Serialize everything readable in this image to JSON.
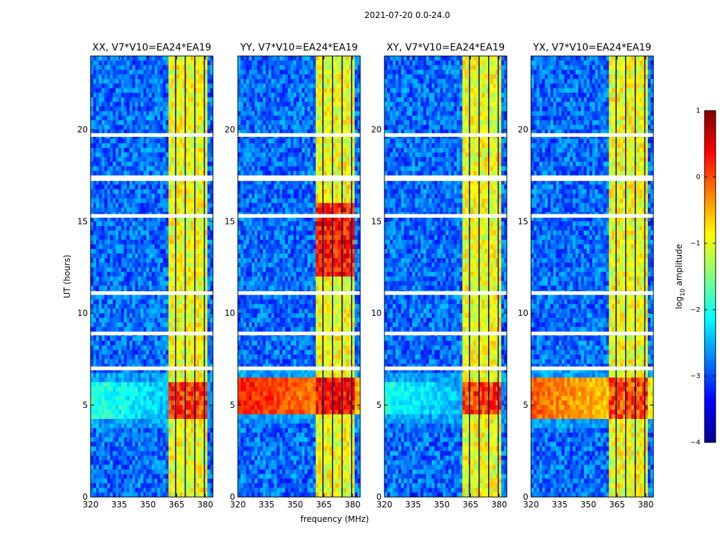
{
  "suptitle": "2021-07-20 0.0-24.0",
  "colors": {
    "deep_blue": "#00008f",
    "blue": "#0a2cff",
    "cyan": "#14c8ff",
    "yellow": "#e8ff20",
    "red": "#c80000",
    "dark_red": "#7f0000",
    "gap": "#ffffff"
  },
  "chart_data": [
    {
      "type": "heatmap",
      "title": "XX, V7*V10=EA24*EA19",
      "xlabel": "",
      "ylabel": "UT (hours)",
      "xlim": [
        320,
        384
      ],
      "ylim": [
        0,
        24
      ],
      "xticks": [
        "320",
        "335",
        "350",
        "365",
        "380"
      ],
      "yticks": [
        "0",
        "5",
        "10",
        "15",
        "20"
      ],
      "features": {
        "band_lo_mhz": 361,
        "band_hi_mhz": 381,
        "burst_ut": [
          4.2,
          6.3
        ],
        "burst_level": 0.55,
        "rfi_line_level": -1.6
      }
    },
    {
      "type": "heatmap",
      "title": "YY, V7*V10=EA24*EA19",
      "xlabel": "frequency (MHz)",
      "ylabel": "",
      "xlim": [
        320,
        384
      ],
      "ylim": [
        0,
        24
      ],
      "xticks": [
        "320",
        "335",
        "350",
        "365",
        "380"
      ],
      "yticks": [
        "0",
        "5",
        "10",
        "15",
        "20"
      ],
      "features": {
        "band_lo_mhz": 361,
        "band_hi_mhz": 381,
        "burst_ut": [
          4.5,
          6.5
        ],
        "burst_level": 0.8,
        "rfi_line_level": 0.6
      }
    },
    {
      "type": "heatmap",
      "title": "XY, V7*V10=EA24*EA19",
      "xlabel": "",
      "ylabel": "",
      "xlim": [
        320,
        384
      ],
      "ylim": [
        0,
        24
      ],
      "xticks": [
        "320",
        "335",
        "350",
        "365",
        "380"
      ],
      "yticks": [
        "0",
        "5",
        "10",
        "15",
        "20"
      ],
      "features": {
        "band_lo_mhz": 361,
        "band_hi_mhz": 381,
        "burst_ut": [
          4.6,
          6.3
        ],
        "burst_level": 0.5,
        "rfi_line_level": -1.7
      }
    },
    {
      "type": "heatmap",
      "title": "YX, V7*V10=EA24*EA19",
      "xlabel": "",
      "ylabel": "",
      "xlim": [
        320,
        384
      ],
      "ylim": [
        0,
        24
      ],
      "xticks": [
        "320",
        "335",
        "350",
        "365",
        "380"
      ],
      "yticks": [
        "0",
        "5",
        "10",
        "15",
        "20"
      ],
      "features": {
        "band_lo_mhz": 361,
        "band_hi_mhz": 381,
        "burst_ut": [
          4.2,
          6.6
        ],
        "burst_level": 0.45,
        "rfi_line_level": 0.2
      }
    }
  ],
  "colorbar": {
    "label_base": "log",
    "label_sub": "10",
    "label_rest": " amplitude",
    "vmin": -4,
    "vmax": 1,
    "ticks": [
      "1",
      "0",
      "−1",
      "−2",
      "−3",
      "−4"
    ]
  },
  "data_gaps_ut": [
    [
      19.6,
      19.8
    ],
    [
      17.2,
      17.5
    ],
    [
      15.2,
      15.4
    ],
    [
      11.0,
      11.2
    ],
    [
      8.8,
      9.0
    ],
    [
      6.9,
      7.1
    ]
  ]
}
